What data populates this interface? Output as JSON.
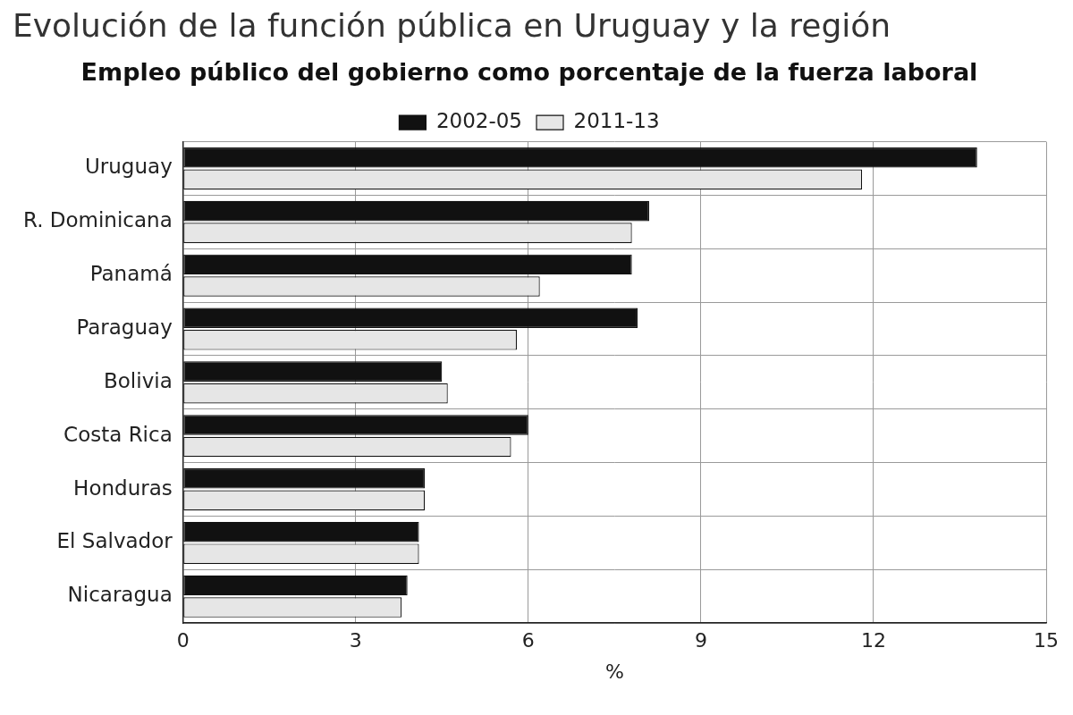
{
  "chart_data": {
    "type": "bar",
    "title": "Evolución de la función pública en Uruguay y la región",
    "subtitle": "Empleo público del gobierno como porcentaje de la fuerza laboral",
    "orientation": "horizontal",
    "categories": [
      "Uruguay",
      "R. Dominicana",
      "Panamá",
      "Paraguay",
      "Bolivia",
      "Costa Rica",
      "Honduras",
      "El Salvador",
      "Nicaragua"
    ],
    "series": [
      {
        "name": "2002-05",
        "color": "#111111",
        "values": [
          13.8,
          8.1,
          7.8,
          7.9,
          4.5,
          6.0,
          4.2,
          4.1,
          3.9
        ]
      },
      {
        "name": "2011-13",
        "color": "#e6e6e6",
        "values": [
          11.8,
          7.8,
          6.2,
          5.8,
          4.6,
          5.7,
          4.2,
          4.1,
          3.8
        ]
      }
    ],
    "x_label": "%",
    "xlim": [
      0,
      15
    ],
    "xticks": [
      0,
      3,
      6,
      9,
      12,
      15
    ],
    "grid": true,
    "legend": "top"
  }
}
